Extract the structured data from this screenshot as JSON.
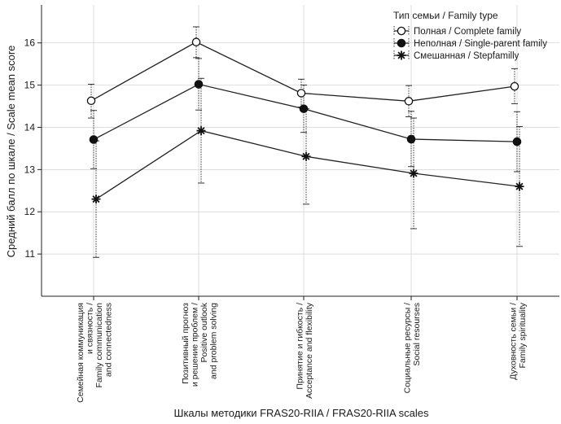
{
  "chart_data": {
    "type": "line",
    "xlabel": "Шкалы методики FRAS20-RIIA / FRAS20-RIIA scales",
    "ylabel": "Средний балл по шкале / Scale mean score",
    "ylim": [
      10,
      16.9
    ],
    "yticks": [
      11,
      12,
      13,
      14,
      15,
      16
    ],
    "grid": true,
    "legend_position": "top-right",
    "legend_title": "Тип семьи / Family type",
    "categories": [
      [
        "Семейная коммуникация",
        "и связность /",
        "Family communication",
        "and connectedness"
      ],
      [
        "Позитивный прогноз",
        "и решение проблем /",
        "Positive outlook",
        "and problem solving"
      ],
      [
        "Принятие и гибкость /",
        "Acceptance and flexibility"
      ],
      [
        "Социальные ресурсы /",
        "Social resourses"
      ],
      [
        "Духовность семьи /",
        "Family spirituality"
      ]
    ],
    "series": [
      {
        "name": "Полная / Complete family",
        "marker": "open-circle",
        "values": [
          14.63,
          16.02,
          14.81,
          14.62,
          14.97
        ],
        "lower": [
          14.22,
          15.65,
          14.48,
          14.25,
          14.56
        ],
        "upper": [
          15.02,
          16.38,
          15.14,
          14.99,
          15.39
        ]
      },
      {
        "name": "Неполная / Single-parent family",
        "marker": "filled-circle",
        "values": [
          13.71,
          15.02,
          14.44,
          13.72,
          13.66
        ],
        "lower": [
          13.02,
          14.41,
          13.88,
          13.07,
          12.95
        ],
        "upper": [
          14.4,
          15.63,
          15.0,
          14.38,
          14.37
        ]
      },
      {
        "name": "Смешанная / Stepfamilly",
        "marker": "asterisk",
        "values": [
          12.3,
          13.92,
          13.31,
          12.91,
          12.6
        ],
        "lower": [
          10.92,
          12.68,
          12.18,
          11.6,
          11.18
        ],
        "upper": [
          13.68,
          15.16,
          14.44,
          14.22,
          14.02
        ]
      }
    ]
  }
}
